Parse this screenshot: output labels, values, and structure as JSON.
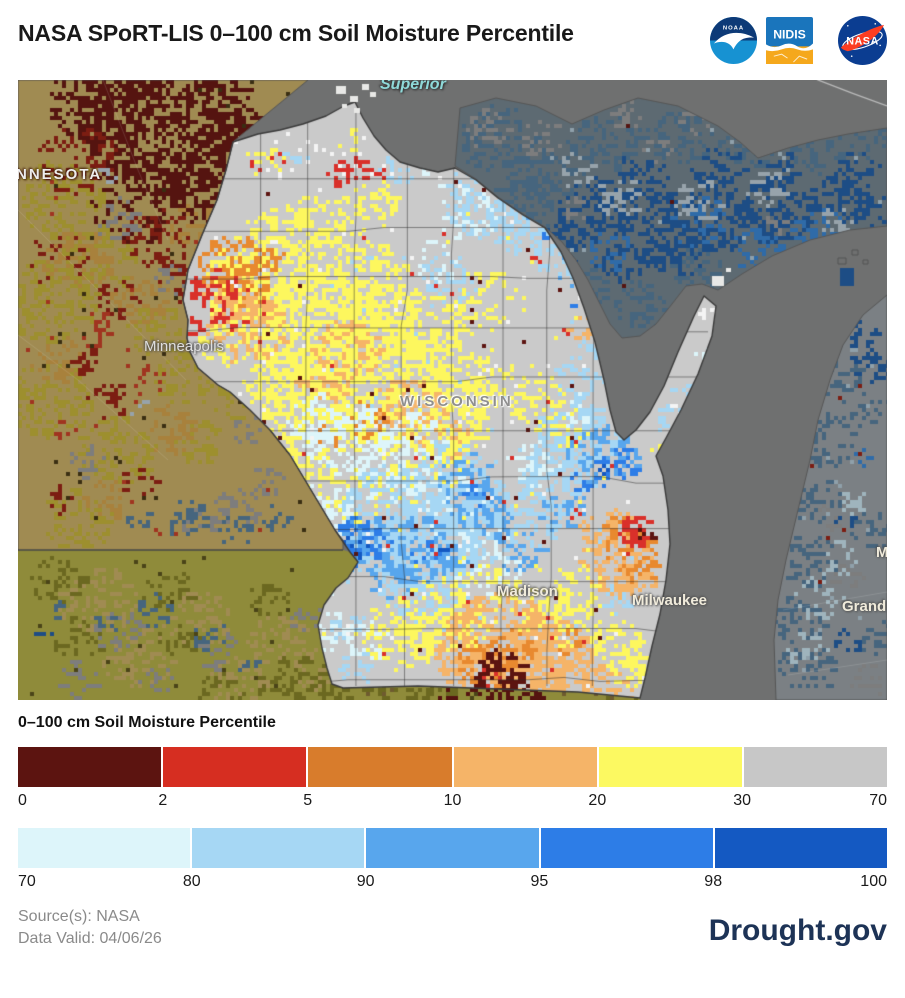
{
  "header": {
    "title": "NASA SPoRT-LIS 0–100 cm Soil Moisture Percentile",
    "logos": {
      "noaa": "NOAA",
      "nidis": "NIDIS",
      "nasa": "NASA"
    }
  },
  "map_labels": {
    "lake_superior": "Superior",
    "minnesota": "NNESOTA",
    "minneapolis": "Minneapolis",
    "wisconsin": "WISCONSIN",
    "madison": "Madison",
    "milwaukee": "Milwaukee",
    "grand": "Grand",
    "michigan_fragment": "M"
  },
  "legend": {
    "heading": "0–100 cm Soil Moisture Percentile",
    "dry_colors": [
      "#5c1410",
      "#d62e21",
      "#d87c2c",
      "#f5b468",
      "#fcf961",
      "#c7c7c7"
    ],
    "dry_ticks": [
      "0",
      "2",
      "5",
      "10",
      "20",
      "30",
      "70"
    ],
    "wet_colors": [
      "#ddf5fa",
      "#a6d7f4",
      "#58a6ed",
      "#2d7de7",
      "#1459c2"
    ],
    "wet_ticks": [
      "70",
      "80",
      "90",
      "95",
      "98",
      "100"
    ]
  },
  "map_palette": {
    "lake": "#6f7070",
    "wisconsin_base": "#cacaca",
    "bright": {
      "yellow": "#fdf75e",
      "light_orange": "#f5b468",
      "orange": "#e8892f",
      "red": "#d9302a",
      "maroon": "#5c1410",
      "white": "#f4f4f4",
      "cyan": "#ddf5fa",
      "light_blue": "#a6d7f4",
      "medium_blue": "#58a6ed",
      "blue": "#2d7de7",
      "deep_blue": "#1459c2"
    },
    "dim": {
      "slate_base": "#5d6a72",
      "steel": "#46657e",
      "blue": "#2f6ba8",
      "deep_blue": "#1d4d85",
      "gray": "#7d7d7d",
      "light_gray": "#97a3ab",
      "mustard": "#9d8f2e",
      "tan": "#a8813c",
      "tan2": "#a08b52",
      "maroon": "#551410",
      "dark_red": "#7c1d12",
      "brick": "#a03420",
      "olive_base": "#8f8b3a",
      "dark_olive": "#6b6820",
      "brown": "#6e5b2f",
      "mi_base": "#7b8084"
    }
  },
  "footer": {
    "source": "Source(s): NASA",
    "valid": "Data Valid: 04/06/26",
    "brand": "Drought.gov"
  }
}
